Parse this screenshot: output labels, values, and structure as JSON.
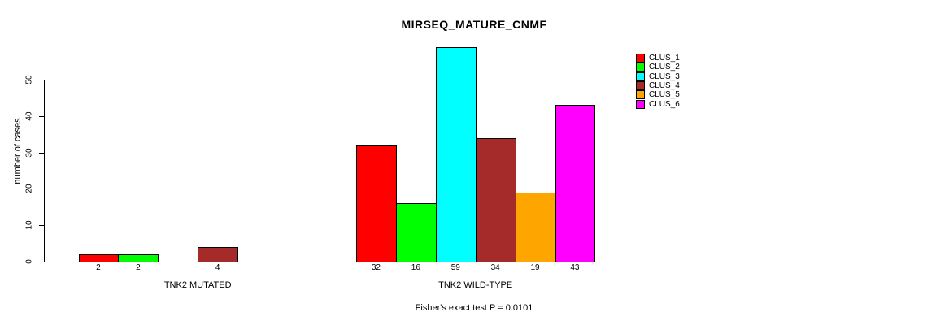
{
  "chart_data": {
    "type": "bar",
    "title": "MIRSEQ_MATURE_CNMF",
    "xlabel": "",
    "ylabel": "number of cases",
    "ylim": [
      0,
      59
    ],
    "yticks": [
      0,
      10,
      20,
      30,
      40,
      50
    ],
    "grid": false,
    "background": "#FFFFFF",
    "categories": [
      "TNK2 MUTATED",
      "TNK2 WILD-TYPE"
    ],
    "series": [
      {
        "name": "CLUS_1",
        "color": "#FF0000",
        "values": [
          2,
          32
        ]
      },
      {
        "name": "CLUS_2",
        "color": "#00FF00",
        "values": [
          2,
          16
        ]
      },
      {
        "name": "CLUS_3",
        "color": "#00FFFF",
        "values": [
          0,
          59
        ]
      },
      {
        "name": "CLUS_4",
        "color": "#A52A2A",
        "values": [
          4,
          34
        ]
      },
      {
        "name": "CLUS_5",
        "color": "#FFA500",
        "values": [
          0,
          19
        ]
      },
      {
        "name": "CLUS_6",
        "color": "#FF00FF",
        "values": [
          0,
          43
        ]
      }
    ],
    "bar_value_labels": {
      "TNK2 MUTATED": [
        2,
        2,
        4
      ],
      "TNK2 WILD-TYPE": [
        32,
        16,
        59,
        34,
        19,
        43
      ],
      "note": "labels shown under each non-zero bar"
    },
    "legend_position": "top-right",
    "legend_entries": [
      "CLUS_1",
      "CLUS_2",
      "CLUS_3",
      "CLUS_4",
      "CLUS_5",
      "CLUS_6"
    ],
    "annotation": "Fisher's exact test P = 0.0101"
  }
}
